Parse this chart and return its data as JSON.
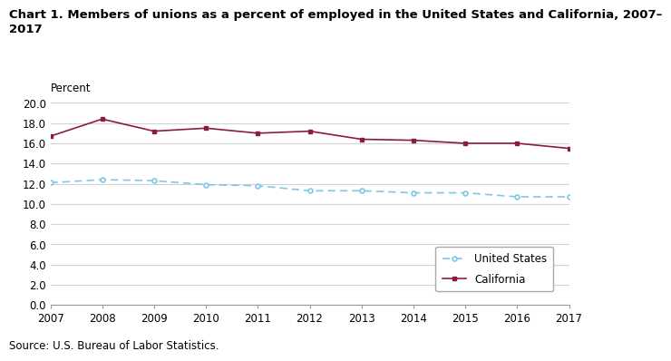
{
  "title_line1": "Chart 1. Members of unions as a percent of employed in the United States and California, 2007–",
  "title_line2": "2017",
  "ylabel": "Percent",
  "source": "Source: U.S. Bureau of Labor Statistics.",
  "years": [
    2007,
    2008,
    2009,
    2010,
    2011,
    2012,
    2013,
    2014,
    2015,
    2016,
    2017
  ],
  "us_values": [
    12.1,
    12.4,
    12.3,
    11.9,
    11.8,
    11.3,
    11.3,
    11.1,
    11.1,
    10.7,
    10.7
  ],
  "ca_values": [
    16.7,
    18.4,
    17.2,
    17.5,
    17.0,
    17.2,
    16.4,
    16.3,
    16.0,
    16.0,
    15.5
  ],
  "us_color": "#7EC8E3",
  "ca_color": "#8B1A4A",
  "us_label": "United States",
  "ca_label": "California",
  "ylim": [
    0.0,
    20.0
  ],
  "yticks": [
    0.0,
    2.0,
    4.0,
    6.0,
    8.0,
    10.0,
    12.0,
    14.0,
    16.0,
    18.0,
    20.0
  ],
  "grid_color": "#d3d3d3",
  "background_color": "#ffffff",
  "title_fontsize": 9.5,
  "axis_fontsize": 8.5,
  "legend_fontsize": 8.5,
  "source_fontsize": 8.5
}
